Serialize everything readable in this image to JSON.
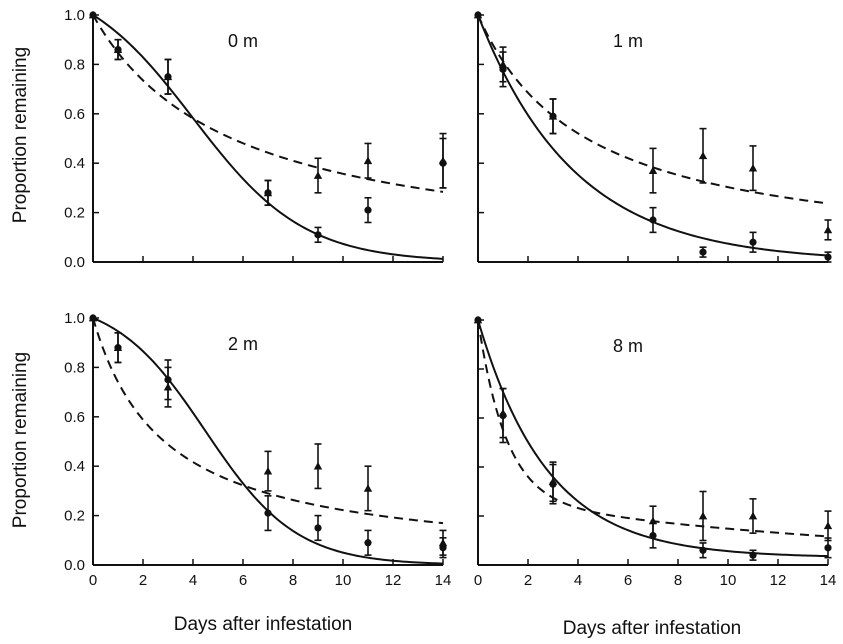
{
  "figure": {
    "ylabel": "Proportion remaining",
    "xlabel": "Days after infestation",
    "colors": {
      "ink": "#111111",
      "background": "#ffffff"
    },
    "markers": {
      "series_a": "circle",
      "series_b": "triangle"
    },
    "line_styles": {
      "series_a": "solid",
      "series_b": "dashed"
    }
  },
  "chart_data": [
    {
      "type": "scatter",
      "title": "0 m",
      "xlim": [
        0,
        14
      ],
      "ylim": [
        0.0,
        1.0
      ],
      "xticks": [],
      "yticks": [
        "0.0",
        "0.2",
        "0.4",
        "0.6",
        "0.8",
        "1.0"
      ],
      "series": [
        {
          "marker": "circle",
          "line": "solid",
          "x": [
            0,
            1,
            3,
            7,
            9,
            11,
            14
          ],
          "y": [
            1.0,
            0.86,
            0.75,
            0.28,
            0.11,
            0.21,
            0.4
          ],
          "err": [
            0,
            0.04,
            0.07,
            0.05,
            0.03,
            0.05,
            0.1
          ],
          "fit": {
            "kind": "logistic",
            "k": 0.45,
            "m": 4.0
          }
        },
        {
          "marker": "triangle",
          "line": "dashed",
          "x": [
            0,
            1,
            3,
            7,
            9,
            11,
            14
          ],
          "y": [
            1.0,
            0.86,
            0.75,
            0.28,
            0.35,
            0.41,
            0.41
          ],
          "err": [
            0,
            0.04,
            0.07,
            0.05,
            0.07,
            0.07,
            0.11
          ],
          "fit": {
            "kind": "hyperbolic",
            "a": 0.18
          }
        }
      ]
    },
    {
      "type": "scatter",
      "title": "1 m",
      "xlim": [
        0,
        14
      ],
      "ylim": [
        0.0,
        1.0
      ],
      "xticks": [],
      "yticks": [],
      "series": [
        {
          "marker": "circle",
          "line": "solid",
          "x": [
            0,
            1,
            3,
            7,
            9,
            11,
            14
          ],
          "y": [
            1.0,
            0.78,
            0.59,
            0.17,
            0.04,
            0.08,
            0.02
          ],
          "err": [
            0,
            0.07,
            0.07,
            0.05,
            0.02,
            0.04,
            0.02
          ],
          "fit": {
            "kind": "exponential",
            "k": 0.26
          }
        },
        {
          "marker": "triangle",
          "line": "dashed",
          "x": [
            0,
            1,
            3,
            7,
            9,
            11,
            14
          ],
          "y": [
            1.0,
            0.8,
            0.59,
            0.37,
            0.43,
            0.38,
            0.13
          ],
          "err": [
            0,
            0.07,
            0.07,
            0.09,
            0.11,
            0.09,
            0.04
          ],
          "fit": {
            "kind": "hyperbolic",
            "a": 0.23
          }
        }
      ]
    },
    {
      "type": "scatter",
      "title": "2 m",
      "xlim": [
        0,
        14
      ],
      "ylim": [
        0.0,
        1.0
      ],
      "xticks": [
        "0",
        "2",
        "4",
        "6",
        "8",
        "10",
        "12",
        "14"
      ],
      "yticks": [
        "0.0",
        "0.2",
        "0.4",
        "0.6",
        "0.8",
        "1.0"
      ],
      "series": [
        {
          "marker": "circle",
          "line": "solid",
          "x": [
            0,
            1,
            3,
            7,
            9,
            11,
            14
          ],
          "y": [
            1.0,
            0.88,
            0.75,
            0.21,
            0.15,
            0.09,
            0.07
          ],
          "err": [
            0,
            0.06,
            0.08,
            0.07,
            0.05,
            0.05,
            0.04
          ],
          "fit": {
            "kind": "logistic",
            "k": 0.55,
            "m": 4.5
          }
        },
        {
          "marker": "triangle",
          "line": "dashed",
          "x": [
            0,
            1,
            3,
            7,
            9,
            11,
            14
          ],
          "y": [
            1.0,
            0.88,
            0.72,
            0.38,
            0.4,
            0.31,
            0.09
          ],
          "err": [
            0,
            0.06,
            0.08,
            0.08,
            0.09,
            0.09,
            0.05
          ],
          "fit": {
            "kind": "hyperbolic",
            "a": 0.35
          }
        }
      ]
    },
    {
      "type": "scatter",
      "title": "8 m",
      "xlim": [
        0,
        14
      ],
      "ylim": [
        0.0,
        1.0
      ],
      "xticks": [
        "0",
        "2",
        "4",
        "6",
        "8",
        "10",
        "12",
        "14"
      ],
      "yticks": [],
      "series": [
        {
          "marker": "circle",
          "line": "solid",
          "x": [
            0,
            1,
            3,
            7,
            9,
            11,
            14
          ],
          "y": [
            1.0,
            0.61,
            0.33,
            0.12,
            0.06,
            0.04,
            0.07
          ],
          "err": [
            0,
            0.11,
            0.08,
            0.05,
            0.03,
            0.02,
            0.04
          ],
          "fit": {
            "kind": "exp-plateau",
            "k": 0.36,
            "c": 0.03
          }
        },
        {
          "marker": "triangle",
          "line": "dashed",
          "x": [
            0,
            1,
            3,
            7,
            9,
            11,
            14
          ],
          "y": [
            1.0,
            0.62,
            0.34,
            0.18,
            0.2,
            0.2,
            0.16
          ],
          "err": [
            0,
            0.1,
            0.08,
            0.06,
            0.1,
            0.07,
            0.06
          ],
          "fit": {
            "kind": "double-exp",
            "w": 0.73,
            "k1": 0.9,
            "k2": 0.06
          }
        }
      ]
    }
  ]
}
